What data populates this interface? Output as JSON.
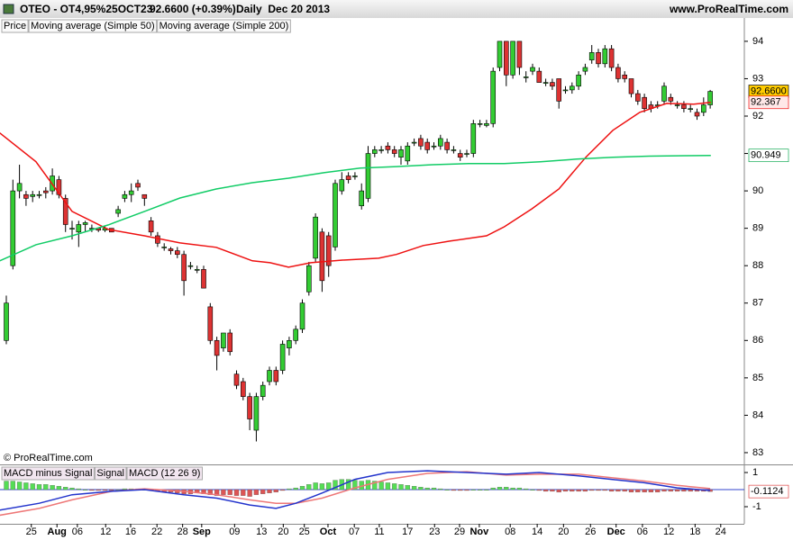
{
  "header": {
    "symbol": "OTEO - OT4,95%25OCT23",
    "quote": "92.6600 (+0.39%)",
    "period": "Daily  Dec 20 2013",
    "site": "www.ProRealTime.com"
  },
  "watermark": "© ProRealTime.com",
  "chart_data": [
    {
      "type": "candlestick",
      "series": [
        {
          "name": "Price",
          "up_color": "#33cc33",
          "down_color": "#dd3333",
          "open": [
            86.0,
            88.0,
            90.0,
            89.9,
            89.85,
            89.9,
            90.0,
            90.0,
            90.3,
            89.8,
            89.0,
            88.9,
            89.1,
            89.0,
            89.0,
            88.95,
            89.0,
            89.4,
            89.8,
            89.9,
            90.2,
            89.9,
            89.2,
            88.8,
            88.5,
            88.45,
            88.4,
            88.3,
            88.0,
            87.9,
            87.9,
            86.9,
            86.0,
            85.8,
            86.2,
            85.1,
            84.9,
            84.5,
            83.6,
            84.5,
            84.9,
            85.2,
            85.2,
            85.8,
            86.0,
            86.3,
            87.3,
            88.2,
            88.9,
            88.8,
            88.5,
            90.0,
            90.4,
            90.4,
            89.6,
            89.8,
            91.0,
            91.1,
            91.2,
            91.1,
            90.9,
            90.8,
            91.3,
            91.4,
            91.3,
            91.2,
            91.2,
            91.3,
            91.1,
            91.0,
            91.0,
            91.0,
            91.8,
            91.75,
            91.8,
            93.3,
            94.0,
            93.1,
            94.0,
            93.05,
            93.2,
            93.2,
            92.9,
            92.9,
            93.0,
            92.7,
            92.7,
            92.8,
            93.2,
            93.5,
            93.7,
            93.4,
            93.8,
            93.3,
            93.1,
            93.0,
            92.6,
            92.5,
            92.3,
            92.3,
            92.4,
            92.5,
            92.3,
            92.3,
            92.2,
            92.1,
            92.1,
            92.3
          ],
          "high": [
            87.2,
            90.3,
            90.7,
            90.0,
            90.0,
            90.0,
            90.1,
            90.6,
            90.4,
            89.9,
            89.2,
            89.2,
            89.2,
            89.1,
            89.0,
            89.05,
            89.0,
            89.6,
            90.0,
            90.2,
            90.3,
            89.9,
            89.3,
            88.9,
            88.6,
            88.5,
            88.5,
            88.4,
            88.1,
            88.0,
            88.0,
            87.0,
            86.1,
            86.2,
            86.3,
            85.2,
            85.0,
            84.6,
            84.6,
            84.9,
            85.3,
            85.3,
            86.0,
            86.1,
            86.4,
            87.1,
            88.1,
            89.4,
            89.0,
            88.9,
            90.3,
            90.5,
            90.5,
            90.5,
            90.2,
            91.2,
            91.2,
            91.2,
            91.3,
            91.2,
            91.2,
            91.3,
            91.4,
            91.5,
            91.4,
            91.3,
            91.5,
            91.4,
            91.2,
            91.1,
            91.1,
            91.9,
            91.9,
            91.9,
            93.3,
            94.0,
            94.0,
            94.0,
            94.0,
            93.2,
            93.4,
            93.3,
            93.0,
            93.0,
            93.0,
            92.8,
            92.9,
            93.2,
            93.4,
            93.9,
            93.8,
            93.9,
            93.9,
            93.4,
            93.2,
            93.0,
            92.7,
            92.6,
            92.4,
            92.4,
            92.9,
            92.6,
            92.4,
            92.4,
            92.3,
            92.2,
            92.5,
            92.7
          ],
          "low": [
            85.9,
            87.9,
            89.8,
            89.6,
            89.7,
            89.8,
            89.8,
            89.9,
            89.8,
            88.9,
            88.7,
            88.5,
            88.9,
            88.9,
            88.9,
            88.9,
            88.9,
            89.3,
            89.7,
            89.7,
            90.0,
            89.6,
            88.8,
            88.5,
            88.4,
            88.3,
            88.2,
            87.2,
            87.9,
            87.8,
            87.4,
            85.9,
            85.2,
            85.7,
            85.6,
            84.7,
            84.4,
            83.6,
            83.3,
            84.4,
            84.8,
            84.8,
            85.1,
            85.6,
            85.9,
            86.2,
            87.2,
            88.1,
            87.3,
            87.7,
            88.4,
            89.9,
            90.2,
            90.3,
            89.5,
            89.7,
            90.9,
            91.0,
            91.0,
            90.9,
            90.7,
            90.7,
            91.2,
            91.1,
            91.0,
            91.1,
            91.1,
            91.0,
            91.0,
            90.8,
            90.9,
            90.9,
            91.7,
            91.7,
            91.7,
            93.2,
            92.8,
            93.0,
            93.1,
            92.9,
            93.1,
            92.9,
            92.8,
            92.7,
            92.2,
            92.6,
            92.6,
            92.7,
            93.1,
            93.4,
            93.3,
            93.3,
            93.2,
            92.9,
            92.9,
            92.5,
            92.3,
            92.1,
            92.1,
            92.2,
            92.3,
            92.3,
            92.2,
            92.1,
            92.1,
            91.9,
            92.0,
            92.2
          ],
          "close": [
            87.0,
            90.0,
            90.2,
            89.8,
            89.9,
            89.9,
            89.95,
            90.4,
            89.9,
            89.1,
            89.0,
            89.1,
            89.15,
            89.0,
            88.95,
            89.0,
            88.9,
            89.5,
            89.9,
            90.0,
            90.1,
            89.8,
            88.9,
            88.6,
            88.5,
            88.4,
            88.3,
            87.6,
            88.0,
            87.9,
            87.4,
            86.0,
            85.6,
            86.2,
            85.7,
            84.8,
            84.5,
            83.9,
            84.5,
            84.8,
            85.2,
            84.9,
            85.9,
            86.0,
            86.3,
            87.0,
            88.0,
            89.3,
            87.6,
            88.0,
            90.2,
            90.3,
            90.3,
            90.4,
            90.0,
            91.0,
            91.1,
            91.1,
            91.1,
            91.0,
            91.1,
            91.2,
            91.3,
            91.2,
            91.1,
            91.2,
            91.4,
            91.1,
            91.1,
            90.9,
            91.0,
            91.8,
            91.8,
            91.8,
            93.2,
            94.0,
            93.1,
            94.0,
            93.3,
            93.05,
            93.3,
            92.9,
            92.9,
            92.8,
            92.4,
            92.7,
            92.8,
            93.1,
            93.3,
            93.7,
            93.4,
            93.8,
            93.3,
            93.0,
            93.0,
            92.6,
            92.4,
            92.2,
            92.2,
            92.3,
            92.8,
            92.4,
            92.3,
            92.2,
            92.2,
            92.0,
            92.3,
            92.66
          ]
        },
        {
          "name": "Moving average (Simple 50)",
          "color": "#ee1111",
          "x": [
            -1,
            4.5,
            10,
            15.5,
            21,
            26.4,
            31.9,
            37.4,
            40.1,
            42.9,
            46.3,
            51.1,
            56.6,
            59.3,
            63.4,
            67.5,
            73,
            75.7,
            79.9,
            84,
            88.1,
            92.2,
            96.3,
            100.4,
            104.5,
            107.1
          ],
          "values": [
            91.55,
            90.78,
            89.45,
            88.97,
            88.8,
            88.61,
            88.49,
            88.13,
            88.08,
            87.96,
            88.08,
            88.15,
            88.2,
            88.3,
            88.54,
            88.66,
            88.8,
            89.04,
            89.52,
            90.05,
            90.9,
            91.62,
            92.1,
            92.34,
            92.32,
            92.367
          ]
        },
        {
          "name": "Moving average (Simple 200)",
          "color": "#11cc66",
          "x": [
            -1,
            4.5,
            10,
            15.5,
            21,
            26.4,
            31.9,
            37.4,
            42.9,
            48.4,
            53.8,
            59.3,
            64.8,
            70.3,
            75.7,
            81.2,
            86.7,
            92.2,
            97.7,
            103.2,
            107.1
          ],
          "values": [
            88.13,
            88.56,
            88.8,
            89.09,
            89.45,
            89.81,
            90.05,
            90.22,
            90.34,
            90.49,
            90.61,
            90.65,
            90.7,
            90.73,
            90.73,
            90.78,
            90.85,
            90.9,
            90.93,
            90.94,
            90.949
          ]
        }
      ],
      "price_tags": [
        {
          "value": 92.66,
          "label": "92.6600",
          "color": "#000000",
          "background": "#ffcc00"
        },
        {
          "value": 92.367,
          "label": "92.367",
          "color": "#ee1111",
          "background": "#ffe8e8"
        },
        {
          "value": 90.949,
          "label": "90.949",
          "color": "#11aa55",
          "background": "#ffffff"
        }
      ],
      "xlim": [
        -0.96,
        112.19
      ],
      "ylim": [
        82.71,
        94.19
      ],
      "yticks": [
        83,
        84,
        85,
        86,
        87,
        88,
        89,
        90,
        91,
        92,
        93,
        94
      ]
    },
    {
      "type": "macd",
      "series": [
        {
          "name": "MACD minus Signal",
          "color": "#dd4444",
          "up_color": "#55dd55",
          "down_color": "#dd5555",
          "values": [
            0.5,
            0.5,
            0.45,
            0.4,
            0.35,
            0.3,
            0.3,
            0.25,
            0.2,
            0.15,
            0.1,
            0.05,
            0.0,
            -0.05,
            -0.05,
            -0.05,
            -0.05,
            0.0,
            0.05,
            0.05,
            0.05,
            0.0,
            -0.05,
            -0.1,
            -0.15,
            -0.15,
            -0.2,
            -0.25,
            -0.25,
            -0.2,
            -0.25,
            -0.3,
            -0.35,
            -0.3,
            -0.3,
            -0.35,
            -0.35,
            -0.4,
            -0.3,
            -0.25,
            -0.2,
            -0.15,
            -0.05,
            0.05,
            0.1,
            0.2,
            0.3,
            0.4,
            0.35,
            0.4,
            0.55,
            0.6,
            0.6,
            0.55,
            0.5,
            0.55,
            0.5,
            0.45,
            0.4,
            0.35,
            0.3,
            0.25,
            0.2,
            0.15,
            0.1,
            0.1,
            0.05,
            0.0,
            -0.05,
            -0.05,
            -0.05,
            0.0,
            0.0,
            0.0,
            0.1,
            0.15,
            0.15,
            0.1,
            0.1,
            0.05,
            0.0,
            -0.05,
            -0.1,
            -0.1,
            -0.15,
            -0.1,
            -0.1,
            -0.1,
            -0.1,
            -0.05,
            -0.05,
            -0.05,
            -0.1,
            -0.1,
            -0.1,
            -0.15,
            -0.15,
            -0.15,
            -0.15,
            -0.15,
            -0.1,
            -0.1,
            -0.1,
            -0.1,
            -0.1,
            -0.1,
            -0.1,
            -0.1124
          ]
        },
        {
          "name": "Signal",
          "color": "#ee7777",
          "x": [
            -1,
            5,
            10,
            16,
            21,
            27,
            32,
            37,
            41,
            44,
            48,
            53,
            58,
            64,
            70,
            76,
            81,
            87,
            92,
            97,
            102,
            107
          ],
          "values": [
            -1.5,
            -1.1,
            -0.6,
            -0.1,
            0.05,
            -0.1,
            -0.3,
            -0.6,
            -0.8,
            -0.8,
            -0.5,
            0.1,
            0.6,
            0.95,
            1.05,
            0.85,
            0.9,
            0.9,
            0.7,
            0.5,
            0.25,
            0.06
          ]
        },
        {
          "name": "MACD (12 26 9)",
          "color": "#2233cc",
          "x": [
            -1,
            5,
            10,
            16,
            21,
            27,
            32,
            37,
            41,
            44,
            48,
            53,
            58,
            64,
            70,
            76,
            81,
            87,
            92,
            97,
            102,
            107
          ],
          "values": [
            -1.2,
            -0.8,
            -0.3,
            -0.1,
            0.0,
            -0.3,
            -0.5,
            -0.9,
            -1.1,
            -0.8,
            -0.2,
            0.6,
            1.0,
            1.1,
            1.0,
            0.9,
            1.0,
            0.8,
            0.6,
            0.4,
            0.1,
            -0.05
          ]
        }
      ],
      "price_tags": [
        {
          "value": -0.1124,
          "label": "-0.1124",
          "color": "#dd4444",
          "background": "#ffffff"
        }
      ],
      "xlim": [
        -0.96,
        112.19
      ],
      "ylim": [
        -2,
        1.37
      ],
      "yticks": [
        1,
        -1
      ],
      "xticks": [
        {
          "value": 3.8,
          "label": "25"
        },
        {
          "value": 7.7,
          "label": "Aug"
        },
        {
          "value": 10.8,
          "label": "06"
        },
        {
          "value": 15.1,
          "label": "12"
        },
        {
          "value": 18.9,
          "label": "16"
        },
        {
          "value": 22.9,
          "label": "22"
        },
        {
          "value": 26.8,
          "label": "28"
        },
        {
          "value": 29.7,
          "label": "Sep"
        },
        {
          "value": 34.7,
          "label": "09"
        },
        {
          "value": 38.8,
          "label": "13"
        },
        {
          "value": 42.1,
          "label": "20"
        },
        {
          "value": 45.3,
          "label": "25"
        },
        {
          "value": 48.9,
          "label": "Oct"
        },
        {
          "value": 52.9,
          "label": "07"
        },
        {
          "value": 56.7,
          "label": "11"
        },
        {
          "value": 61,
          "label": "17"
        },
        {
          "value": 65.1,
          "label": "23"
        },
        {
          "value": 68.9,
          "label": "29"
        },
        {
          "value": 71.9,
          "label": "Nov"
        },
        {
          "value": 76.6,
          "label": "08"
        },
        {
          "value": 80.7,
          "label": "14"
        },
        {
          "value": 84.7,
          "label": "20"
        },
        {
          "value": 88.8,
          "label": "26"
        },
        {
          "value": 92.7,
          "label": "Dec"
        },
        {
          "value": 96.7,
          "label": "06"
        },
        {
          "value": 100.7,
          "label": "12"
        },
        {
          "value": 104.7,
          "label": "18"
        },
        {
          "value": 108.6,
          "label": "24"
        }
      ]
    }
  ]
}
